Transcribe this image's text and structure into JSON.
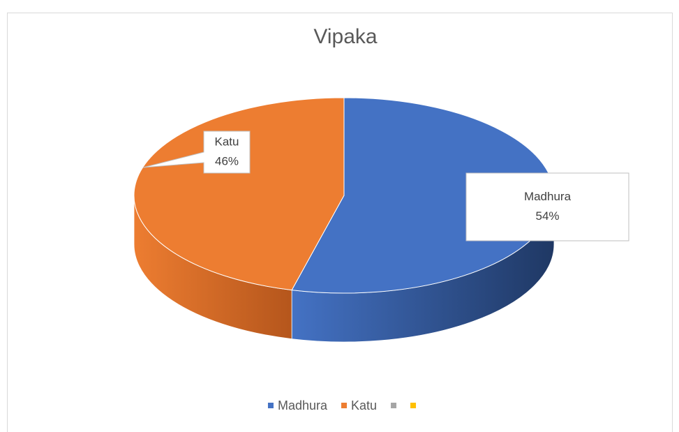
{
  "chart_data": {
    "type": "pie3d",
    "title": "Vipaka",
    "categories": [
      "Madhura",
      "Katu",
      null,
      null
    ],
    "values": [
      54,
      46,
      null,
      null
    ],
    "value_labels": [
      "54%",
      "46%",
      null,
      null
    ],
    "colors": [
      "#4472c4",
      "#ed7d31",
      "#a5a5a5",
      "#ffc000"
    ],
    "side_colors": [
      "#1f3864",
      "#b5561c",
      "#7f7f7f",
      "#bf9000"
    ],
    "legend": "bottom"
  }
}
